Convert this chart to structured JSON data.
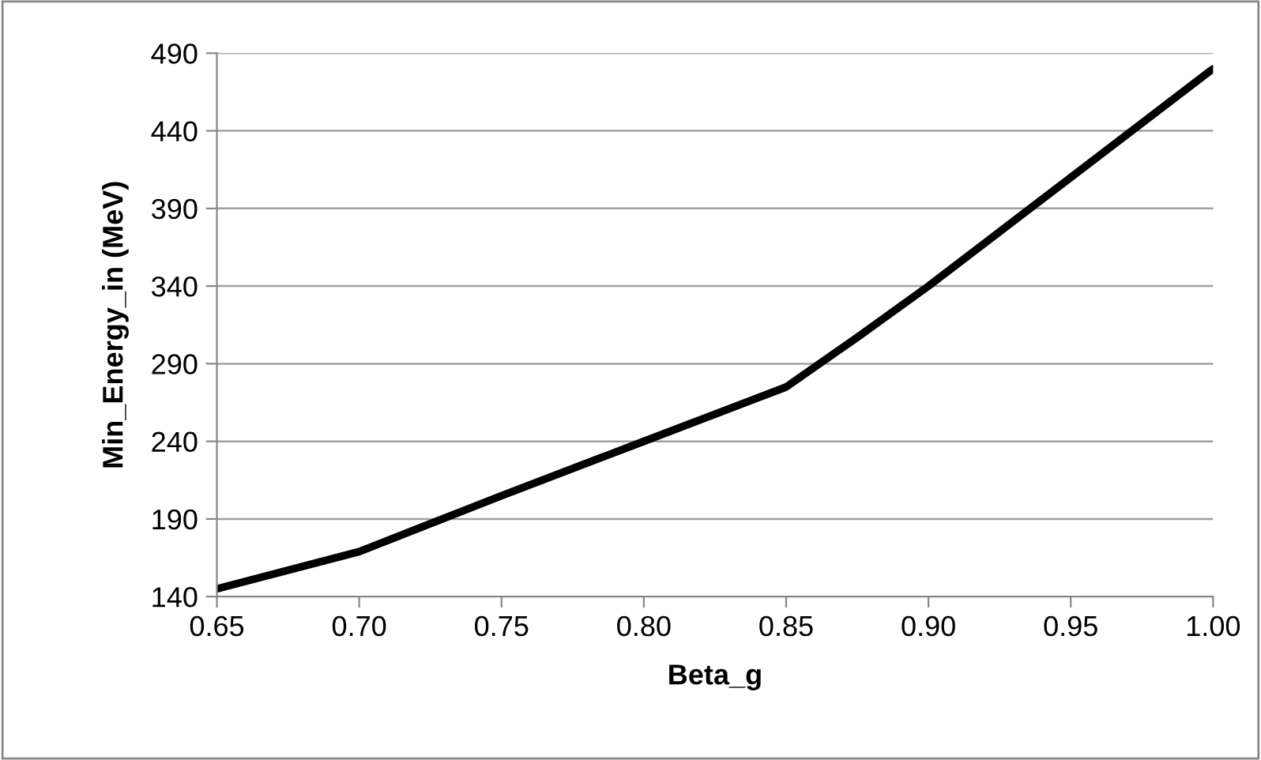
{
  "chart_data": {
    "type": "line",
    "xlabel": "Beta_g",
    "ylabel": "Min_Energy_in (MeV)",
    "x": [
      0.65,
      0.7,
      0.75,
      0.8,
      0.85,
      0.875,
      0.9,
      0.95,
      1.0
    ],
    "series": [
      {
        "color": "#000000",
        "values": [
          145,
          169,
          205,
          240,
          275,
          307,
          340,
          410,
          480
        ]
      }
    ],
    "xlim": [
      0.65,
      1.0
    ],
    "xticks": [
      {
        "value": 0.65,
        "label": "0.65"
      },
      {
        "value": 0.7,
        "label": "0.70"
      },
      {
        "value": 0.75,
        "label": "0.75"
      },
      {
        "value": 0.8,
        "label": "0.80"
      },
      {
        "value": 0.85,
        "label": "0.85"
      },
      {
        "value": 0.9,
        "label": "0.90"
      },
      {
        "value": 0.95,
        "label": "0.95"
      },
      {
        "value": 1.0,
        "label": "1.00"
      }
    ],
    "ylim": [
      140,
      490
    ],
    "yticks": [
      140,
      190,
      240,
      290,
      340,
      390,
      440,
      490
    ],
    "grid": "y",
    "marker": "none",
    "line_style": "solid"
  }
}
